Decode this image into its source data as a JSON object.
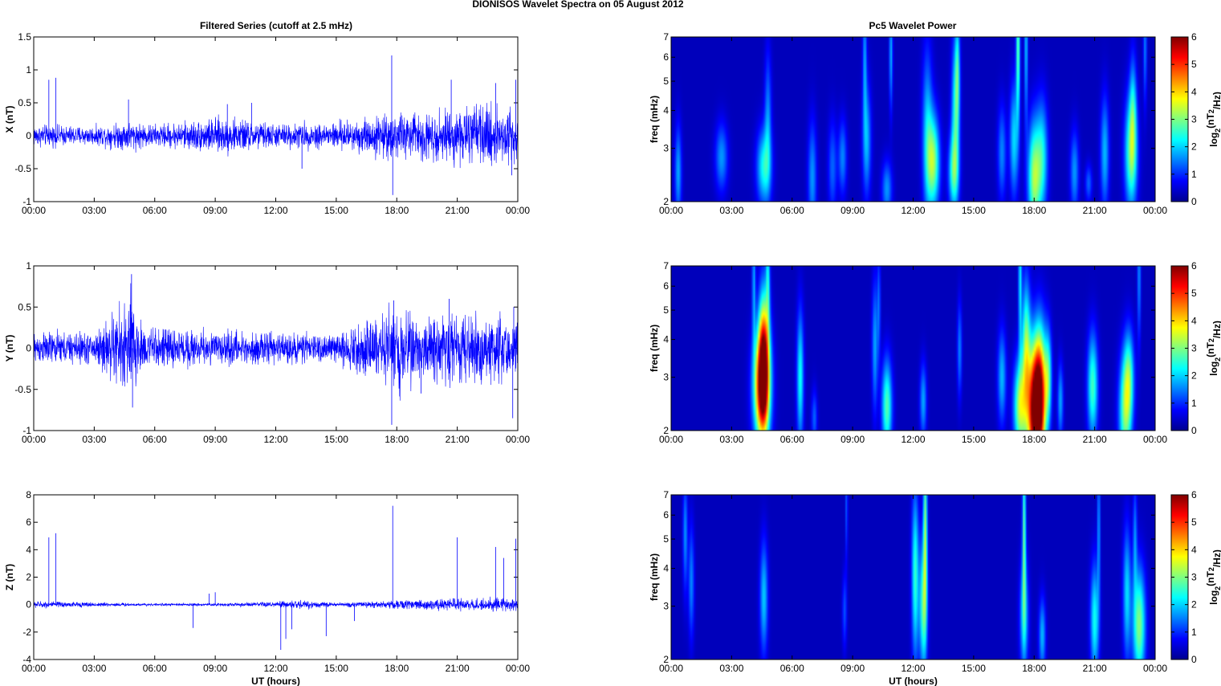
{
  "figure": {
    "title": "DIONISOS Wavelet Spectra on 05 August    2012",
    "left_title": "Filtered Series (cutoff at 2.5 mHz)",
    "right_title": "Pc5 Wavelet Power"
  },
  "chart_data": [
    {
      "type": "line",
      "name": "x-series",
      "series": [
        {
          "name": "",
          "color": "#0000ff"
        }
      ],
      "xlabel": "",
      "ylabel": "X (nT)",
      "x_ticks": [
        "00:00",
        "03:00",
        "06:00",
        "09:00",
        "12:00",
        "15:00",
        "18:00",
        "21:00",
        "00:00"
      ],
      "xlim": [
        0,
        24
      ],
      "ylim": [
        -1,
        1.5
      ],
      "y_ticks": [
        "-1",
        "-0.5",
        "0",
        "0.5",
        "1",
        "1.5"
      ],
      "y_tick_values": [
        -1,
        -0.5,
        0,
        0.5,
        1,
        1.5
      ],
      "envelope": [
        [
          0,
          0.12
        ],
        [
          3,
          0.1
        ],
        [
          4.7,
          0.16
        ],
        [
          6,
          0.12
        ],
        [
          9.5,
          0.2
        ],
        [
          12,
          0.13
        ],
        [
          15,
          0.15
        ],
        [
          17,
          0.22
        ],
        [
          18,
          0.25
        ],
        [
          20.5,
          0.28
        ],
        [
          23.5,
          0.35
        ],
        [
          24,
          0.3
        ]
      ],
      "spikes": [
        [
          0.75,
          0.85
        ],
        [
          1.1,
          0.88
        ],
        [
          4.7,
          0.55
        ],
        [
          9.6,
          0.48
        ],
        [
          10.8,
          0.5
        ],
        [
          13.3,
          -0.5
        ],
        [
          17.75,
          1.22
        ],
        [
          17.8,
          -0.9
        ],
        [
          20.7,
          0.85
        ],
        [
          22.9,
          0.8
        ],
        [
          23.7,
          -0.6
        ],
        [
          23.9,
          0.85
        ]
      ]
    },
    {
      "type": "line",
      "name": "y-series",
      "series": [
        {
          "name": "",
          "color": "#0000ff"
        }
      ],
      "xlabel": "",
      "ylabel": "Y (nT)",
      "x_ticks": [
        "00:00",
        "03:00",
        "06:00",
        "09:00",
        "12:00",
        "15:00",
        "18:00",
        "21:00",
        "00:00"
      ],
      "xlim": [
        0,
        24
      ],
      "ylim": [
        -1,
        1
      ],
      "y_ticks": [
        "-1",
        "-0.5",
        "0",
        "0.5",
        "1"
      ],
      "y_tick_values": [
        -1,
        -0.5,
        0,
        0.5,
        1
      ],
      "envelope": [
        [
          0,
          0.14
        ],
        [
          3,
          0.14
        ],
        [
          4.2,
          0.35
        ],
        [
          4.8,
          0.5
        ],
        [
          5.5,
          0.18
        ],
        [
          9,
          0.15
        ],
        [
          12,
          0.13
        ],
        [
          15,
          0.12
        ],
        [
          17.3,
          0.3
        ],
        [
          18,
          0.4
        ],
        [
          19,
          0.25
        ],
        [
          20.5,
          0.3
        ],
        [
          23.5,
          0.3
        ],
        [
          24,
          0.25
        ]
      ],
      "spikes": [
        [
          4.85,
          0.9
        ],
        [
          4.9,
          -0.72
        ],
        [
          17.75,
          -0.93
        ],
        [
          17.85,
          0.58
        ],
        [
          19.2,
          -0.55
        ],
        [
          20.6,
          0.6
        ],
        [
          23.75,
          -0.85
        ],
        [
          23.8,
          0.5
        ]
      ]
    },
    {
      "type": "line",
      "name": "z-series",
      "series": [
        {
          "name": "",
          "color": "#0000ff"
        }
      ],
      "xlabel": "UT (hours)",
      "ylabel": "Z (nT)",
      "x_ticks": [
        "00:00",
        "03:00",
        "06:00",
        "09:00",
        "12:00",
        "15:00",
        "18:00",
        "21:00",
        "00:00"
      ],
      "xlim": [
        0,
        24
      ],
      "ylim": [
        -4,
        8
      ],
      "y_ticks": [
        "-4",
        "-2",
        "0",
        "2",
        "4",
        "6",
        "8"
      ],
      "y_tick_values": [
        -4,
        -2,
        0,
        2,
        4,
        6,
        8
      ],
      "envelope": [
        [
          0,
          0.18
        ],
        [
          3,
          0.12
        ],
        [
          6,
          0.06
        ],
        [
          9,
          0.08
        ],
        [
          12,
          0.15
        ],
        [
          13,
          0.25
        ],
        [
          15,
          0.1
        ],
        [
          17.5,
          0.2
        ],
        [
          20,
          0.3
        ],
        [
          24,
          0.35
        ]
      ],
      "spikes": [
        [
          0.75,
          4.9
        ],
        [
          1.1,
          5.2
        ],
        [
          7.9,
          -1.7
        ],
        [
          8.7,
          0.8
        ],
        [
          9.0,
          0.9
        ],
        [
          12.25,
          -3.3
        ],
        [
          12.5,
          -2.5
        ],
        [
          12.8,
          -1.8
        ],
        [
          14.5,
          -2.3
        ],
        [
          15.9,
          -1.2
        ],
        [
          17.8,
          7.2
        ],
        [
          21.0,
          4.9
        ],
        [
          22.9,
          4.2
        ],
        [
          23.3,
          3.4
        ],
        [
          23.9,
          4.8
        ]
      ]
    },
    {
      "type": "heatmap",
      "name": "x-power",
      "xlabel": "",
      "ylabel": "freq (mHz)",
      "yscale": "log",
      "x_ticks": [
        "00:00",
        "03:00",
        "06:00",
        "09:00",
        "12:00",
        "15:00",
        "18:00",
        "21:00",
        "00:00"
      ],
      "xlim": [
        0,
        24
      ],
      "ylim": [
        2,
        7
      ],
      "y_ticks": [
        "2",
        "3",
        "4",
        "5",
        "6",
        "7"
      ],
      "y_tick_values": [
        2,
        3,
        4,
        5,
        6,
        7
      ],
      "colorbar": {
        "label": "log2(nT2/Hz)",
        "ticks": [
          "0",
          "1",
          "2",
          "3",
          "4",
          "5",
          "6"
        ],
        "range": [
          0,
          6
        ]
      },
      "blobs": [
        [
          0.35,
          2.5,
          0.12,
          0.25,
          1.4
        ],
        [
          2.5,
          2.8,
          0.22,
          0.18,
          1.3
        ],
        [
          4.6,
          2.6,
          0.25,
          0.2,
          2.0
        ],
        [
          4.8,
          3.8,
          0.12,
          0.35,
          1.2
        ],
        [
          7.0,
          2.4,
          0.15,
          0.3,
          1.3
        ],
        [
          8.0,
          2.6,
          0.15,
          0.25,
          1.0
        ],
        [
          8.5,
          2.8,
          0.15,
          0.2,
          1.2
        ],
        [
          9.7,
          3.2,
          0.15,
          0.3,
          1.5
        ],
        [
          9.6,
          6.0,
          0.07,
          0.35,
          1.3
        ],
        [
          10.7,
          2.2,
          0.18,
          0.15,
          1.3
        ],
        [
          10.9,
          6.2,
          0.06,
          0.3,
          1.5
        ],
        [
          12.7,
          3.4,
          0.18,
          0.45,
          1.5
        ],
        [
          13.0,
          2.7,
          0.22,
          0.25,
          2.7
        ],
        [
          14.0,
          2.5,
          0.18,
          0.2,
          2.0
        ],
        [
          14.1,
          4.0,
          0.14,
          0.4,
          2.0
        ],
        [
          14.2,
          5.5,
          0.08,
          0.3,
          1.4
        ],
        [
          16.4,
          2.9,
          0.15,
          0.25,
          1.2
        ],
        [
          17.0,
          3.2,
          0.15,
          0.3,
          1.7
        ],
        [
          17.2,
          6.5,
          0.07,
          0.4,
          2.5
        ],
        [
          17.6,
          6.5,
          0.06,
          0.4,
          1.6
        ],
        [
          18.0,
          2.4,
          0.22,
          0.3,
          2.8
        ],
        [
          18.4,
          2.8,
          0.2,
          0.3,
          1.8
        ],
        [
          20.0,
          2.5,
          0.15,
          0.22,
          1.3
        ],
        [
          20.7,
          2.3,
          0.12,
          0.1,
          1.0
        ],
        [
          21.5,
          2.9,
          0.15,
          0.3,
          1.5
        ],
        [
          22.8,
          2.9,
          0.22,
          0.3,
          2.5
        ],
        [
          22.9,
          4.0,
          0.12,
          0.3,
          1.4
        ],
        [
          23.5,
          6.5,
          0.06,
          0.3,
          1.2
        ]
      ]
    },
    {
      "type": "heatmap",
      "name": "y-power",
      "xlabel": "",
      "ylabel": "freq (mHz)",
      "yscale": "log",
      "x_ticks": [
        "00:00",
        "03:00",
        "06:00",
        "09:00",
        "12:00",
        "15:00",
        "18:00",
        "21:00",
        "00:00"
      ],
      "xlim": [
        0,
        24
      ],
      "ylim": [
        2,
        7
      ],
      "y_ticks": [
        "2",
        "3",
        "4",
        "5",
        "6",
        "7"
      ],
      "y_tick_values": [
        2,
        3,
        4,
        5,
        6,
        7
      ],
      "colorbar": {
        "label": "log2(nT2/Hz)",
        "ticks": [
          "0",
          "1",
          "2",
          "3",
          "4",
          "5",
          "6"
        ],
        "range": [
          0,
          6
        ]
      },
      "blobs": [
        [
          4.5,
          2.8,
          0.28,
          0.3,
          5.2
        ],
        [
          4.6,
          3.6,
          0.18,
          0.35,
          3.6
        ],
        [
          4.1,
          6.2,
          0.06,
          0.35,
          1.4
        ],
        [
          4.8,
          6.5,
          0.07,
          0.3,
          1.6
        ],
        [
          6.4,
          3.0,
          0.12,
          0.35,
          2.0
        ],
        [
          7.1,
          2.2,
          0.1,
          0.15,
          1.0
        ],
        [
          10.1,
          3.8,
          0.1,
          0.35,
          1.4
        ],
        [
          10.7,
          2.4,
          0.18,
          0.25,
          2.4
        ],
        [
          10.3,
          5.2,
          0.06,
          0.3,
          1.0
        ],
        [
          12.5,
          2.5,
          0.12,
          0.2,
          1.4
        ],
        [
          14.3,
          3.7,
          0.08,
          0.25,
          1.2
        ],
        [
          16.4,
          3.0,
          0.15,
          0.25,
          1.5
        ],
        [
          17.3,
          2.4,
          0.22,
          0.25,
          3.0
        ],
        [
          17.6,
          3.8,
          0.15,
          0.35,
          2.5
        ],
        [
          18.0,
          2.3,
          0.25,
          0.35,
          5.2
        ],
        [
          18.3,
          2.6,
          0.22,
          0.35,
          4.6
        ],
        [
          17.3,
          6.5,
          0.06,
          0.4,
          1.8
        ],
        [
          18.7,
          3.0,
          0.12,
          0.25,
          2.0
        ],
        [
          19.3,
          2.5,
          0.1,
          0.2,
          1.4
        ],
        [
          20.9,
          2.8,
          0.18,
          0.28,
          2.3
        ],
        [
          22.5,
          2.3,
          0.22,
          0.3,
          2.4
        ],
        [
          22.7,
          3.0,
          0.18,
          0.25,
          2.0
        ],
        [
          23.2,
          6.5,
          0.06,
          0.35,
          1.3
        ]
      ]
    },
    {
      "type": "heatmap",
      "name": "z-power",
      "xlabel": "UT (hours)",
      "ylabel": "freq (mHz)",
      "yscale": "log",
      "x_ticks": [
        "00:00",
        "03:00",
        "06:00",
        "09:00",
        "12:00",
        "15:00",
        "18:00",
        "21:00",
        "00:00"
      ],
      "xlim": [
        0,
        24
      ],
      "ylim": [
        2,
        7
      ],
      "y_ticks": [
        "2",
        "3",
        "4",
        "5",
        "6",
        "7"
      ],
      "y_tick_values": [
        2,
        3,
        4,
        5,
        6,
        7
      ],
      "colorbar": {
        "label": "log2(nT2/Hz)",
        "ticks": [
          "0",
          "1",
          "2",
          "3",
          "4",
          "5",
          "6"
        ],
        "range": [
          0,
          6
        ]
      },
      "blobs": [
        [
          0.7,
          5.2,
          0.08,
          0.3,
          1.3
        ],
        [
          1.0,
          3.6,
          0.1,
          0.3,
          1.2
        ],
        [
          4.6,
          3.2,
          0.14,
          0.3,
          1.6
        ],
        [
          8.6,
          2.9,
          0.08,
          0.2,
          0.9
        ],
        [
          8.7,
          6.5,
          0.04,
          0.3,
          1.0
        ],
        [
          12.1,
          3.8,
          0.12,
          0.45,
          2.2
        ],
        [
          12.5,
          3.0,
          0.14,
          0.35,
          2.4
        ],
        [
          12.6,
          5.5,
          0.07,
          0.45,
          2.5
        ],
        [
          17.5,
          2.8,
          0.15,
          0.3,
          1.8
        ],
        [
          17.5,
          5.5,
          0.06,
          0.45,
          2.4
        ],
        [
          18.4,
          2.4,
          0.12,
          0.2,
          1.5
        ],
        [
          21.0,
          2.7,
          0.15,
          0.3,
          2.0
        ],
        [
          21.2,
          5.5,
          0.05,
          0.4,
          1.4
        ],
        [
          22.6,
          3.3,
          0.14,
          0.35,
          1.7
        ],
        [
          23.2,
          2.6,
          0.22,
          0.3,
          2.7
        ],
        [
          23.0,
          5.0,
          0.07,
          0.3,
          1.2
        ]
      ]
    }
  ]
}
